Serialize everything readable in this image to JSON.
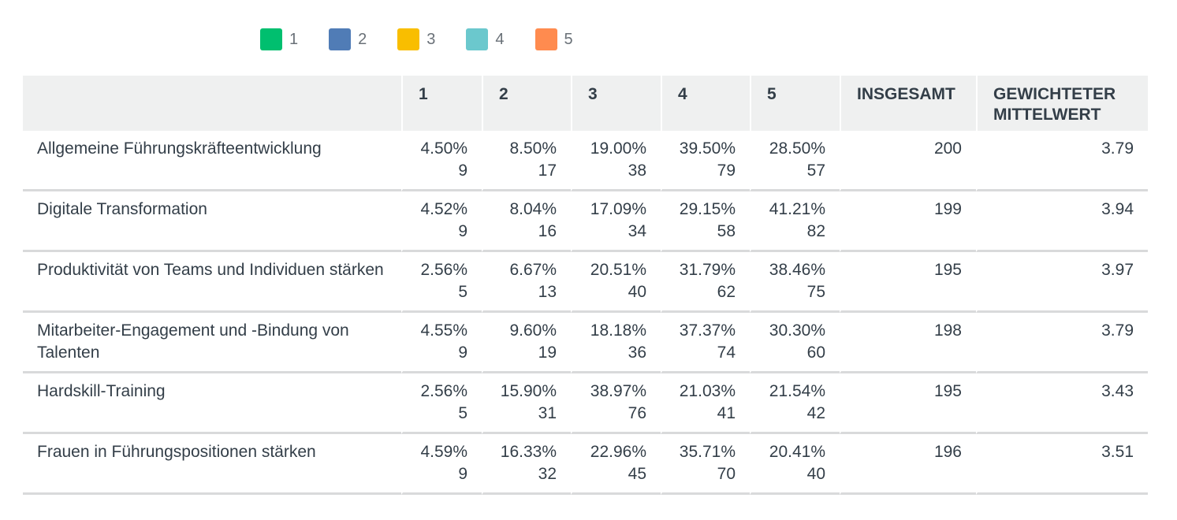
{
  "chart_data": {
    "type": "table",
    "legend": [
      {
        "label": "1",
        "color": "#00bf6f"
      },
      {
        "label": "2",
        "color": "#507cb6"
      },
      {
        "label": "3",
        "color": "#f9be00"
      },
      {
        "label": "4",
        "color": "#6bc8cd"
      },
      {
        "label": "5",
        "color": "#ff8b4f"
      }
    ],
    "headers": [
      "",
      "1",
      "2",
      "3",
      "4",
      "5",
      "INSGESAMT",
      "GEWICHTETER MITTELWERT"
    ],
    "rows": [
      {
        "label": "Allgemeine Führungskräfteentwicklung",
        "pcts": [
          "4.50%",
          "8.50%",
          "19.00%",
          "39.50%",
          "28.50%"
        ],
        "counts": [
          "9",
          "17",
          "38",
          "79",
          "57"
        ],
        "total": "200",
        "avg": "3.79"
      },
      {
        "label": "Digitale Transformation",
        "pcts": [
          "4.52%",
          "8.04%",
          "17.09%",
          "29.15%",
          "41.21%"
        ],
        "counts": [
          "9",
          "16",
          "34",
          "58",
          "82"
        ],
        "total": "199",
        "avg": "3.94"
      },
      {
        "label": "Produktivität von Teams und Individuen stärken",
        "pcts": [
          "2.56%",
          "6.67%",
          "20.51%",
          "31.79%",
          "38.46%"
        ],
        "counts": [
          "5",
          "13",
          "40",
          "62",
          "75"
        ],
        "total": "195",
        "avg": "3.97"
      },
      {
        "label": "Mitarbeiter-Engagement und -Bindung von Talenten",
        "pcts": [
          "4.55%",
          "9.60%",
          "18.18%",
          "37.37%",
          "30.30%"
        ],
        "counts": [
          "9",
          "19",
          "36",
          "74",
          "60"
        ],
        "total": "198",
        "avg": "3.79"
      },
      {
        "label": "Hardskill-Training",
        "pcts": [
          "2.56%",
          "15.90%",
          "38.97%",
          "21.03%",
          "21.54%"
        ],
        "counts": [
          "5",
          "31",
          "76",
          "41",
          "42"
        ],
        "total": "195",
        "avg": "3.43"
      },
      {
        "label": "Frauen in Führungspositionen stärken",
        "pcts": [
          "4.59%",
          "16.33%",
          "22.96%",
          "35.71%",
          "20.41%"
        ],
        "counts": [
          "9",
          "32",
          "45",
          "70",
          "40"
        ],
        "total": "196",
        "avg": "3.51"
      }
    ]
  }
}
